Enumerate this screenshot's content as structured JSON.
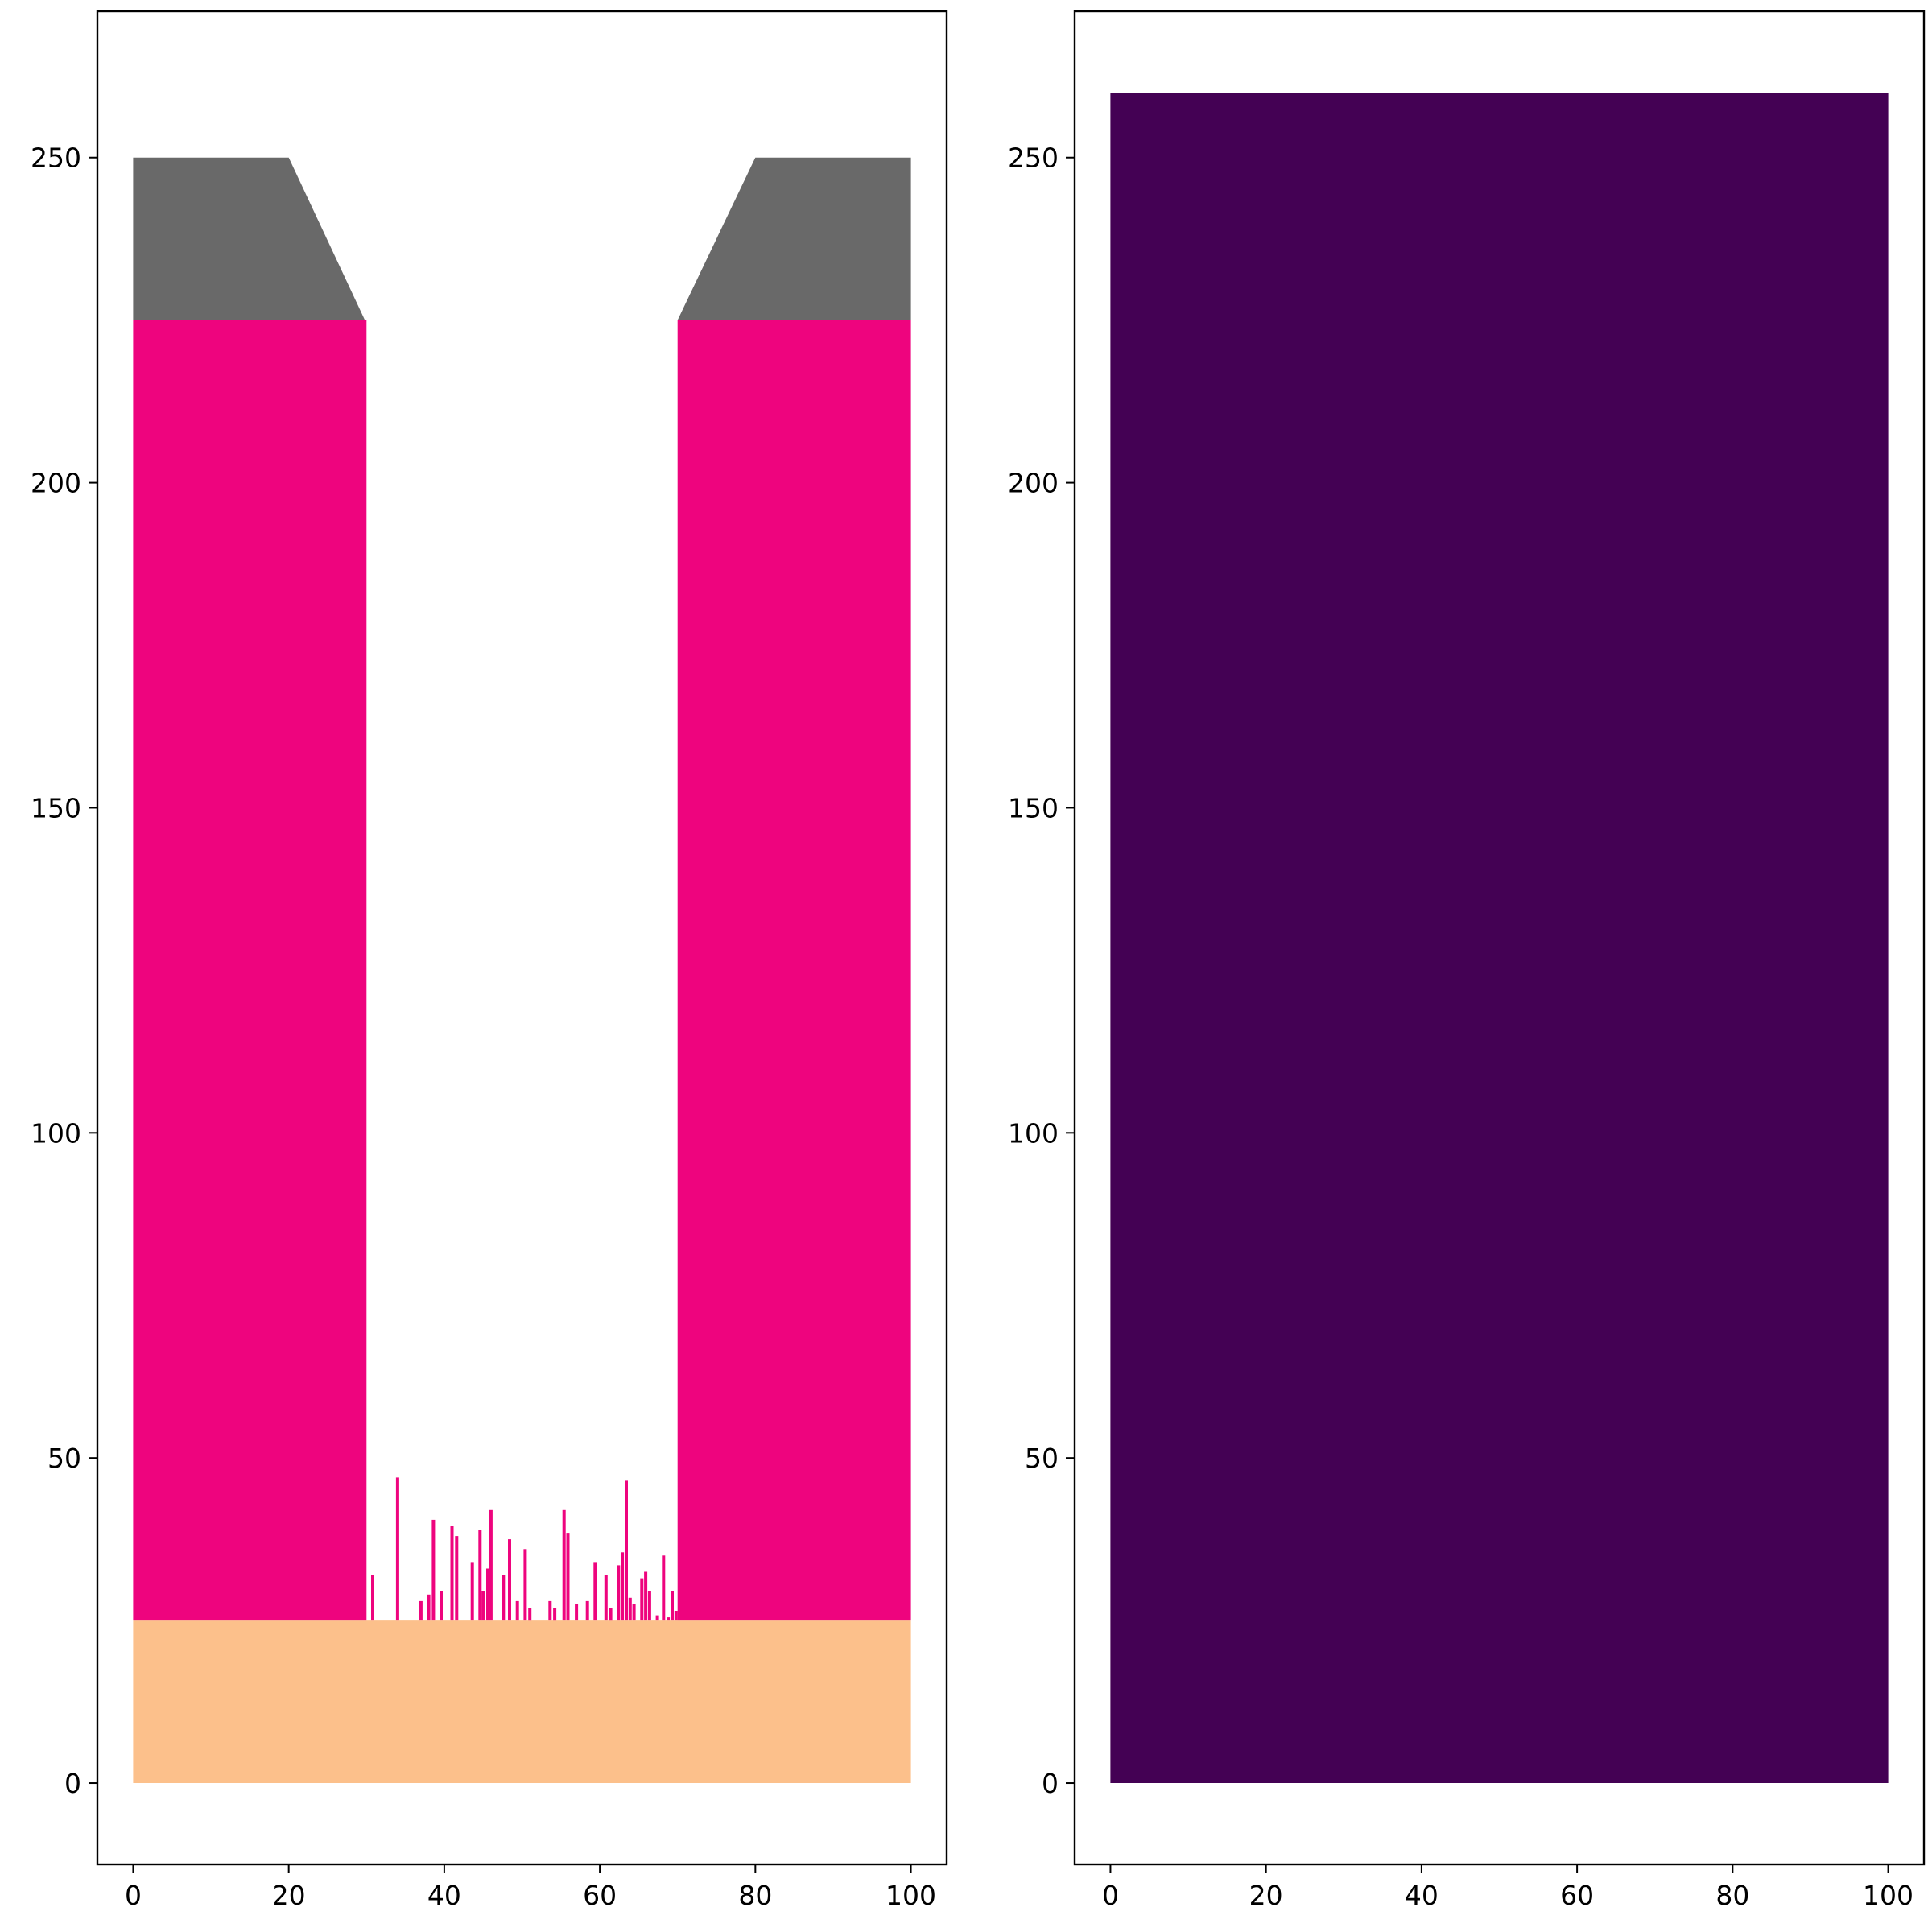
{
  "chart_data": [
    {
      "type": "area",
      "title": "",
      "xlabel": "",
      "ylabel": "",
      "xlim": [
        -4.6,
        104.6
      ],
      "ylim": [
        -12.5,
        272.5
      ],
      "xticks": [
        0,
        20,
        40,
        60,
        80,
        100
      ],
      "yticks": [
        0,
        50,
        100,
        150,
        200,
        250
      ],
      "grid": false,
      "regions": [
        {
          "color": "#fcc08b",
          "polygon": [
            [
              0,
              0
            ],
            [
              100,
              0
            ],
            [
              100,
              25
            ],
            [
              0,
              25
            ]
          ]
        },
        {
          "color": "#ee047e",
          "polygon": [
            [
              0,
              25
            ],
            [
              30,
              25
            ],
            [
              30,
              225
            ],
            [
              0,
              225
            ]
          ]
        },
        {
          "color": "#ee047e",
          "polygon": [
            [
              70,
              25
            ],
            [
              100,
              25
            ],
            [
              100,
              225
            ],
            [
              70,
              225
            ]
          ]
        },
        {
          "color": "#696969",
          "polygon": [
            [
              0,
              225
            ],
            [
              29.8,
              225
            ],
            [
              20,
              250
            ],
            [
              0,
              250
            ]
          ]
        },
        {
          "color": "#696969",
          "polygon": [
            [
              70,
              225
            ],
            [
              100,
              225
            ],
            [
              100,
              250
            ],
            [
              80,
              250
            ]
          ]
        }
      ],
      "columns": {
        "color": "#ee047e",
        "base": 25,
        "points": [
          [
            30.8,
            32
          ],
          [
            34,
            47
          ],
          [
            37,
            28
          ],
          [
            38,
            29
          ],
          [
            38.6,
            40.5
          ],
          [
            39.6,
            29.5
          ],
          [
            41,
            39.5
          ],
          [
            41.6,
            38
          ],
          [
            43.6,
            34
          ],
          [
            44.6,
            39
          ],
          [
            45,
            29.5
          ],
          [
            45.6,
            33
          ],
          [
            46,
            42
          ],
          [
            47.6,
            32
          ],
          [
            48.4,
            37.5
          ],
          [
            49.4,
            28
          ],
          [
            50.4,
            36
          ],
          [
            51,
            27
          ],
          [
            53.6,
            28
          ],
          [
            54.2,
            27
          ],
          [
            55.4,
            42
          ],
          [
            55.9,
            38.5
          ],
          [
            57,
            27.5
          ],
          [
            58.4,
            28
          ],
          [
            59.4,
            34
          ],
          [
            60.8,
            32
          ],
          [
            61.4,
            27
          ],
          [
            62.4,
            33.5
          ],
          [
            62.9,
            35.5
          ],
          [
            63.4,
            46.5
          ],
          [
            63.9,
            28.5
          ],
          [
            64.4,
            27.5
          ],
          [
            65.4,
            31.5
          ],
          [
            65.9,
            32.5
          ],
          [
            66.4,
            29.5
          ],
          [
            67.4,
            25.8
          ],
          [
            68.2,
            35
          ],
          [
            68.8,
            25.5
          ],
          [
            69.3,
            29.5
          ],
          [
            69.8,
            26.5
          ]
        ]
      }
    },
    {
      "type": "area",
      "title": "",
      "xlabel": "",
      "ylabel": "",
      "xlim": [
        -4.6,
        104.6
      ],
      "ylim": [
        -12.5,
        272.5
      ],
      "xticks": [
        0,
        20,
        40,
        60,
        80,
        100
      ],
      "yticks": [
        0,
        50,
        100,
        150,
        200,
        250
      ],
      "grid": false,
      "regions": [
        {
          "color": "#440154",
          "polygon": [
            [
              0,
              0
            ],
            [
              100,
              0
            ],
            [
              100,
              260
            ],
            [
              0,
              260
            ]
          ]
        }
      ]
    }
  ]
}
